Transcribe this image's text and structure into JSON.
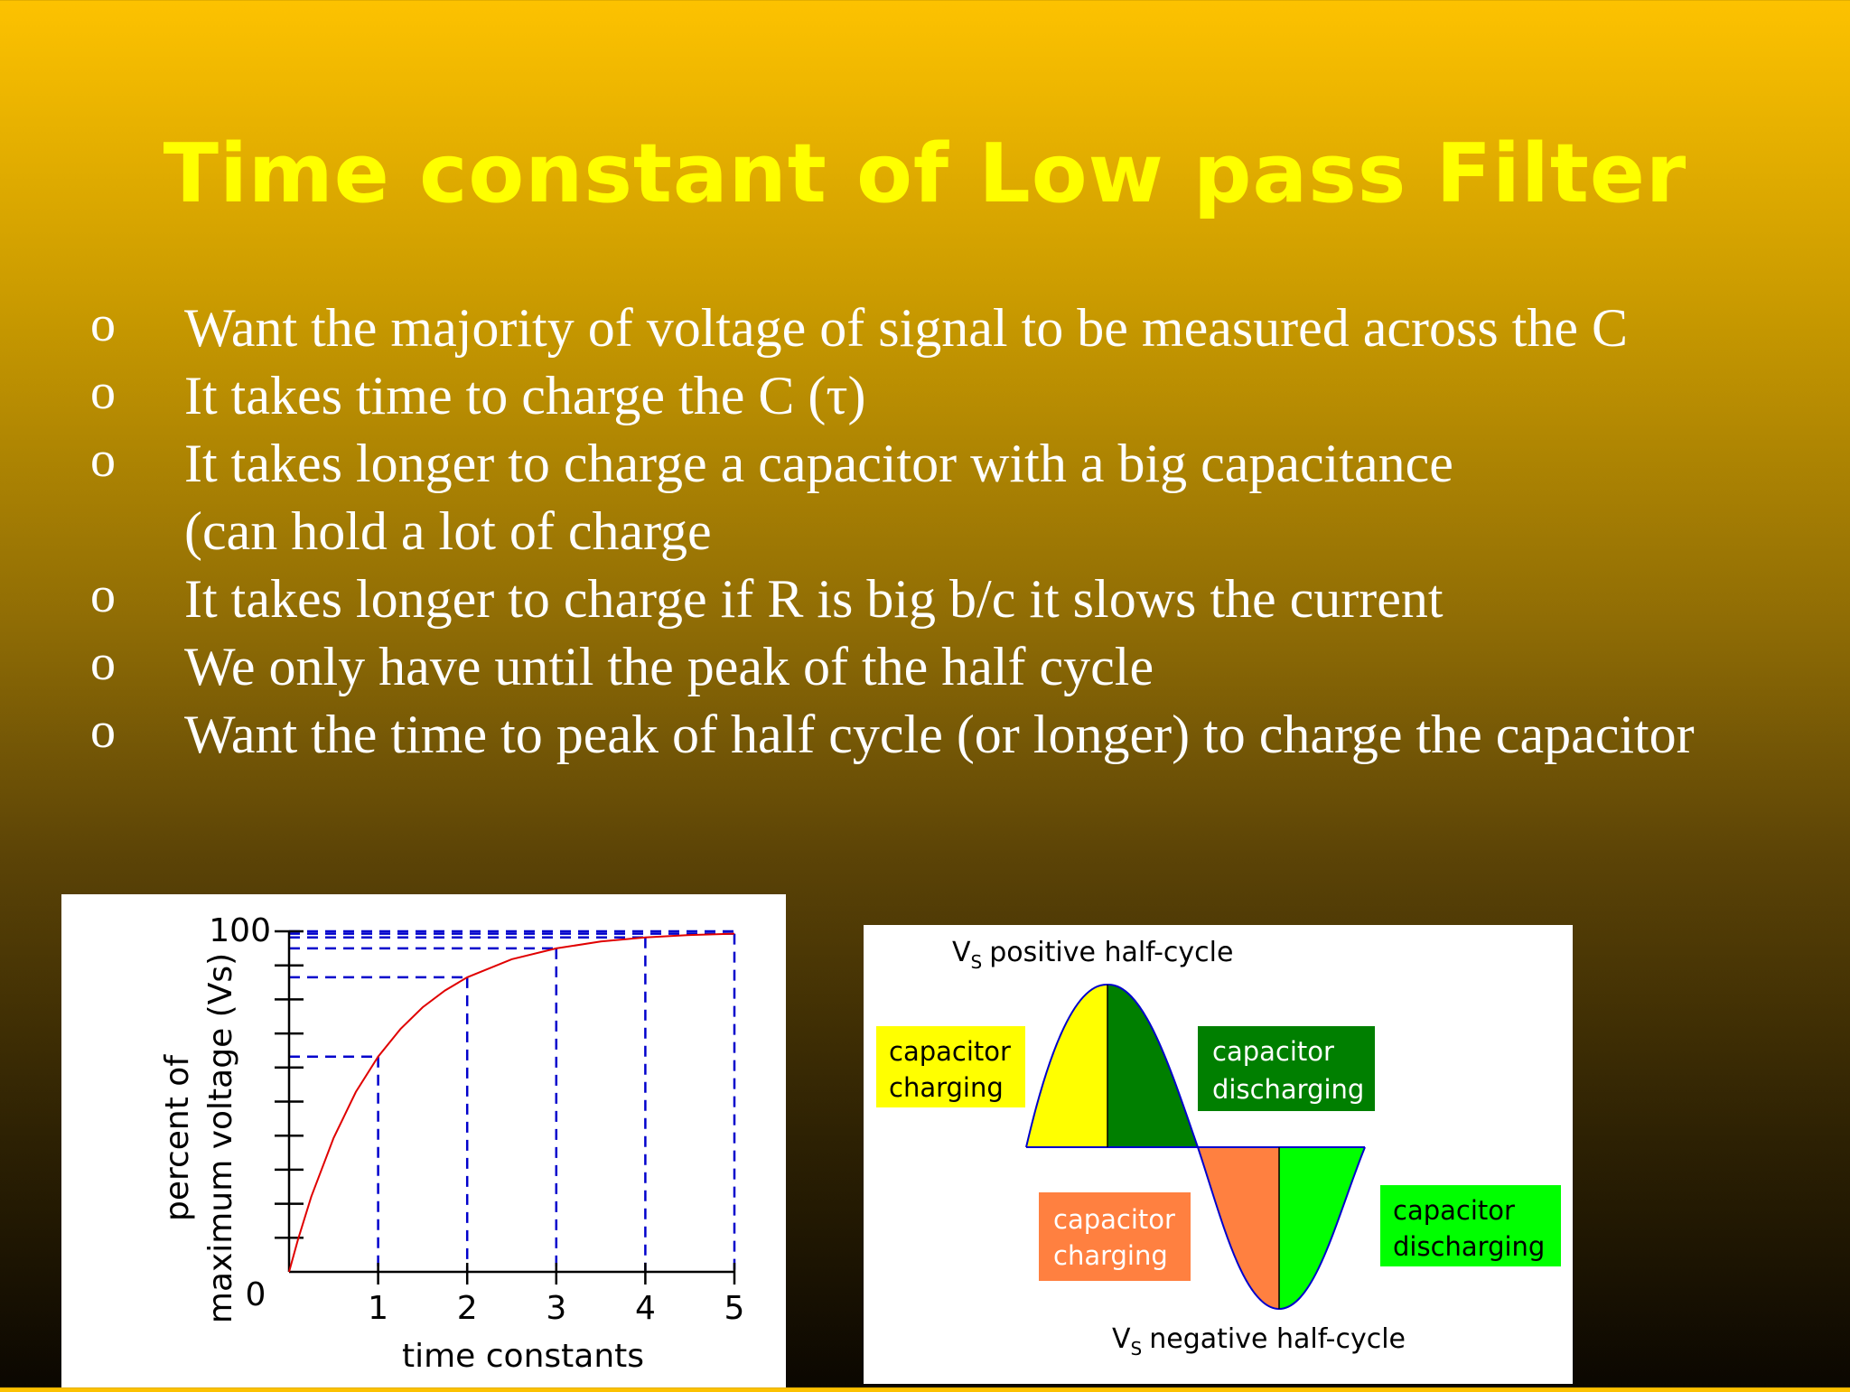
{
  "slide": {
    "title": "Time constant of Low pass Filter",
    "bullet_marker": "o",
    "bullets": [
      {
        "text": "Want the majority of voltage of signal to be measured across the C",
        "marker": true
      },
      {
        "text": "It takes time to charge the C (τ)",
        "marker": true
      },
      {
        "text": "It takes longer to charge a capacitor with a big capacitance",
        "marker": true
      },
      {
        "text": "(can hold a lot of charge",
        "marker": false
      },
      {
        "text": "It takes longer to charge if R is big b/c it slows the current",
        "marker": true
      },
      {
        "text": "We only have until the peak of the half cycle",
        "marker": true
      },
      {
        "text": "Want the time to peak of half cycle (or longer) to charge the capacitor",
        "marker": true
      }
    ],
    "colors": {
      "title": "#ffff00",
      "bullet_text": "#ffffff"
    }
  },
  "chart_data": {
    "type": "line",
    "xlabel": "time constants",
    "ylabel_line1": "percent of",
    "ylabel_line2": "maximum voltage (Vs)",
    "xlim": [
      0,
      5
    ],
    "ylim": [
      0,
      100
    ],
    "x_ticks": [
      "1",
      "2",
      "3",
      "4",
      "5"
    ],
    "y_ticks": [
      "0",
      "100"
    ],
    "y_minor_tick_count": 10,
    "series": [
      {
        "x": [
          0,
          0.1,
          0.25,
          0.5,
          0.75,
          1,
          1.25,
          1.5,
          1.75,
          2,
          2.5,
          3,
          3.5,
          4,
          4.5,
          5
        ],
        "y": [
          0,
          9.5,
          22.1,
          39.3,
          52.8,
          63.2,
          71.3,
          77.7,
          82.6,
          86.5,
          91.8,
          95.0,
          97.0,
          98.2,
          98.9,
          99.3
        ],
        "color": "#e00000"
      }
    ],
    "reference_points": [
      {
        "x": 1,
        "y": 63.2
      },
      {
        "x": 2,
        "y": 86.5
      },
      {
        "x": 3,
        "y": 95.0
      },
      {
        "x": 4,
        "y": 98.2
      },
      {
        "x": 5,
        "y": 99.3
      }
    ],
    "reference_line_color": "#0000cc",
    "grid": false
  },
  "half_cycle": {
    "positive_label": "positive half-cycle",
    "negative_label": "negative half-cycle",
    "vs_symbol": "V",
    "vs_subscript": "S",
    "boxes": [
      {
        "text_line1": "capacitor",
        "text_line2": "charging",
        "color": "#ffff00",
        "text_color": "#000000"
      },
      {
        "text_line1": "capacitor",
        "text_line2": "discharging",
        "color": "#007f00",
        "text_color": "#ffffff"
      },
      {
        "text_line1": "capacitor",
        "text_line2": "charging",
        "color": "#ff8040",
        "text_color": "#ffffff"
      },
      {
        "text_line1": "capacitor",
        "text_line2": "discharging",
        "color": "#00ff00",
        "text_color": "#000000"
      }
    ],
    "segment_colors": [
      "#ffff00",
      "#007f00",
      "#ff8040",
      "#00ff00"
    ],
    "outline_color": "#0000cc"
  }
}
